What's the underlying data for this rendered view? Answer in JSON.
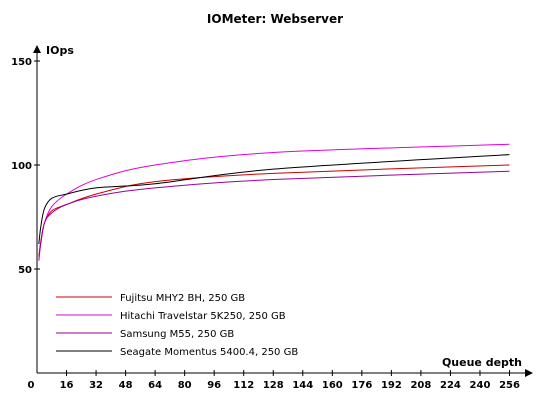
{
  "chart_data": {
    "type": "line",
    "title": "IOMeter: Webserver",
    "ylabel": "IOps",
    "xlabel": "Queue depth",
    "xlim": [
      0,
      260
    ],
    "ylim": [
      0,
      150
    ],
    "yticks": [
      50,
      100,
      150
    ],
    "xticks": [
      0,
      16,
      32,
      48,
      64,
      80,
      96,
      112,
      128,
      144,
      160,
      176,
      192,
      208,
      224,
      240,
      256
    ],
    "legend_position": "bottom-left",
    "x": [
      1,
      2,
      4,
      8,
      16,
      32,
      64,
      128,
      256
    ],
    "series": [
      {
        "name": "Fujitsu MHY2 BH, 250 GB",
        "color": "#cc0000",
        "values": [
          56,
          63,
          72,
          78,
          81,
          86,
          92,
          96,
          100
        ]
      },
      {
        "name": "Hitachi Travelstar 5K250, 250 GB",
        "color": "#e000e0",
        "values": [
          56,
          62,
          72,
          80,
          86,
          93,
          100,
          106,
          110
        ]
      },
      {
        "name": "Samsung M55, 250 GB",
        "color": "#9a009a",
        "values": [
          54,
          62,
          72,
          77,
          81,
          85,
          89,
          93,
          97
        ]
      },
      {
        "name": "Seagate Momentus 5400.4, 250 GB",
        "color": "#000000",
        "values": [
          62,
          70,
          79,
          84,
          86,
          89,
          91,
          98,
          105
        ]
      }
    ]
  }
}
